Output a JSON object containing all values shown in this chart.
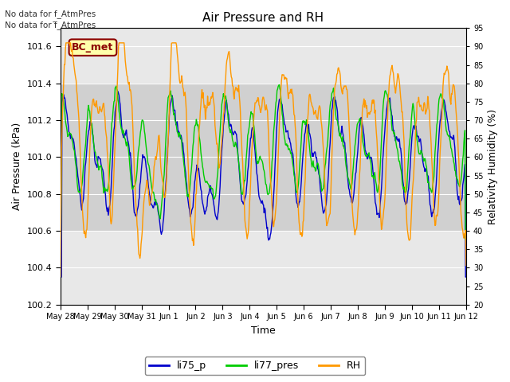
{
  "title": "Air Pressure and RH",
  "xlabel": "Time",
  "ylabel_left": "Air Pressure (kPa)",
  "ylabel_right": "Relativity Humidity (%)",
  "annotation_line1": "No data for f_AtmPres",
  "annotation_line2": "No data for f̅_AtmPres",
  "box_label": "BC_met",
  "ylim_left": [
    100.2,
    101.7
  ],
  "ylim_right": [
    20,
    95
  ],
  "yticks_left": [
    100.2,
    100.4,
    100.6,
    100.8,
    101.0,
    101.2,
    101.4,
    101.6
  ],
  "yticks_right": [
    20,
    25,
    30,
    35,
    40,
    45,
    50,
    55,
    60,
    65,
    70,
    75,
    80,
    85,
    90,
    95
  ],
  "xtick_labels": [
    "May 28",
    "May 29",
    "May 30",
    "May 31",
    "Jun 1",
    "Jun 2",
    "Jun 3",
    "Jun 4",
    "Jun 5",
    "Jun 6",
    "Jun 7",
    "Jun 8",
    "Jun 9",
    "Jun 10",
    "Jun 11",
    "Jun 12"
  ],
  "shade_band": [
    100.6,
    101.4
  ],
  "line_colors": [
    "#0000cc",
    "#00cc00",
    "#ff9900"
  ],
  "legend_labels": [
    "li75_p",
    "li77_pres",
    "RH"
  ],
  "fig_width": 6.4,
  "fig_height": 4.8,
  "dpi": 100
}
